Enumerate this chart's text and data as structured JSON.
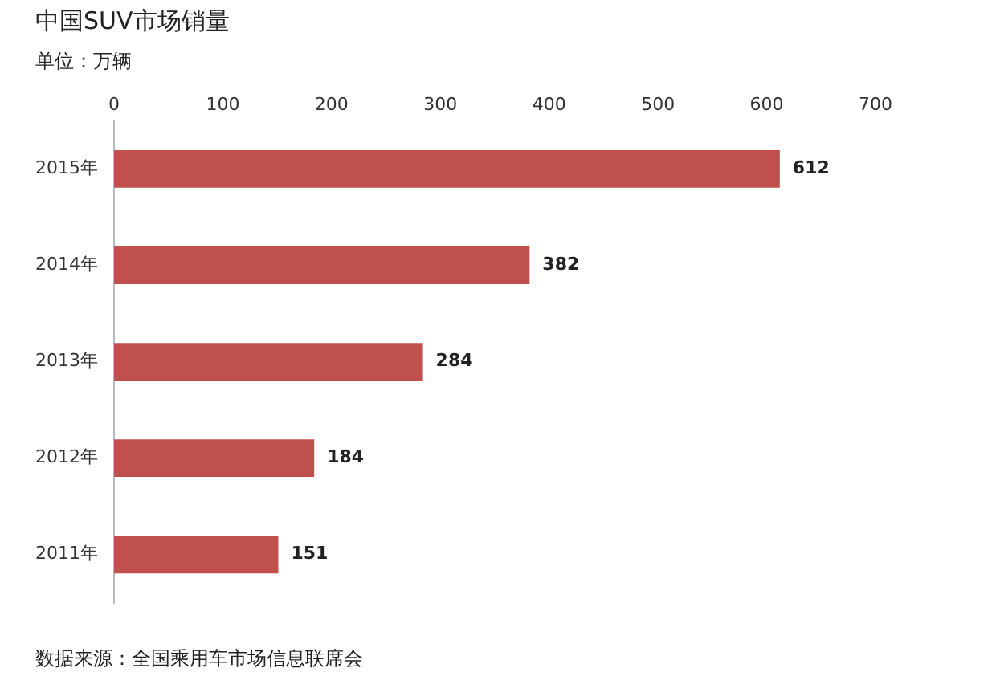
{
  "chart_data": {
    "type": "bar",
    "orientation": "horizontal",
    "title": "中国SUV市场销量",
    "subtitle": "单位：万辆",
    "categories": [
      "2015年",
      "2014年",
      "2013年",
      "2012年",
      "2011年"
    ],
    "values": [
      612,
      382,
      284,
      184,
      151
    ],
    "color": "#c0504d",
    "xlim": [
      0,
      700
    ],
    "xticks": [
      0,
      100,
      200,
      300,
      400,
      500,
      600,
      700
    ],
    "grid": false,
    "legend": false,
    "data_labels": true,
    "annotations": [
      "数据来源：全国乘用车市场信息联席会"
    ]
  }
}
